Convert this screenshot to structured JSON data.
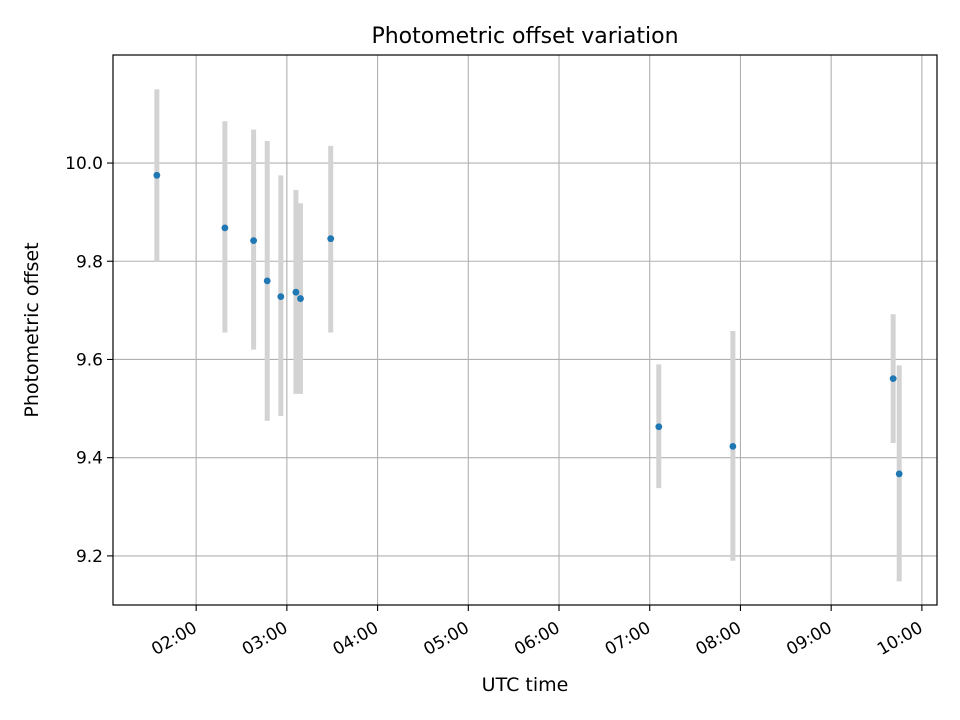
{
  "chart_data": {
    "type": "scatter",
    "title": "Photometric offset variation",
    "xlabel": "UTC time",
    "ylabel": "Photometric offset",
    "xlim": [
      "01:05",
      "10:10"
    ],
    "ylim": [
      9.1,
      10.22
    ],
    "grid": true,
    "x_ticks": [
      "02:00",
      "03:00",
      "04:00",
      "05:00",
      "06:00",
      "07:00",
      "08:00",
      "09:00",
      "10:00"
    ],
    "y_ticks": [
      "9.2",
      "9.4",
      "9.6",
      "9.8",
      "10.0"
    ],
    "marker_color": "#1f77b4",
    "errorbar_color": "#d3d3d3",
    "points": [
      {
        "x": "01:34",
        "y": 9.975,
        "ylow": 9.8,
        "yhigh": 10.15
      },
      {
        "x": "02:19",
        "y": 9.868,
        "ylow": 9.655,
        "yhigh": 10.085
      },
      {
        "x": "02:38",
        "y": 9.842,
        "ylow": 9.62,
        "yhigh": 10.068
      },
      {
        "x": "02:47",
        "y": 9.76,
        "ylow": 9.475,
        "yhigh": 10.045
      },
      {
        "x": "02:56",
        "y": 9.728,
        "ylow": 9.485,
        "yhigh": 9.975
      },
      {
        "x": "03:06",
        "y": 9.737,
        "ylow": 9.53,
        "yhigh": 9.945
      },
      {
        "x": "03:09",
        "y": 9.724,
        "ylow": 9.53,
        "yhigh": 9.918
      },
      {
        "x": "03:29",
        "y": 9.846,
        "ylow": 9.655,
        "yhigh": 10.035
      },
      {
        "x": "07:06",
        "y": 9.463,
        "ylow": 9.338,
        "yhigh": 9.59
      },
      {
        "x": "07:55",
        "y": 9.423,
        "ylow": 9.19,
        "yhigh": 9.658
      },
      {
        "x": "09:41",
        "y": 9.561,
        "ylow": 9.43,
        "yhigh": 9.692
      },
      {
        "x": "09:45",
        "y": 9.367,
        "ylow": 9.148,
        "yhigh": 9.588
      }
    ]
  }
}
